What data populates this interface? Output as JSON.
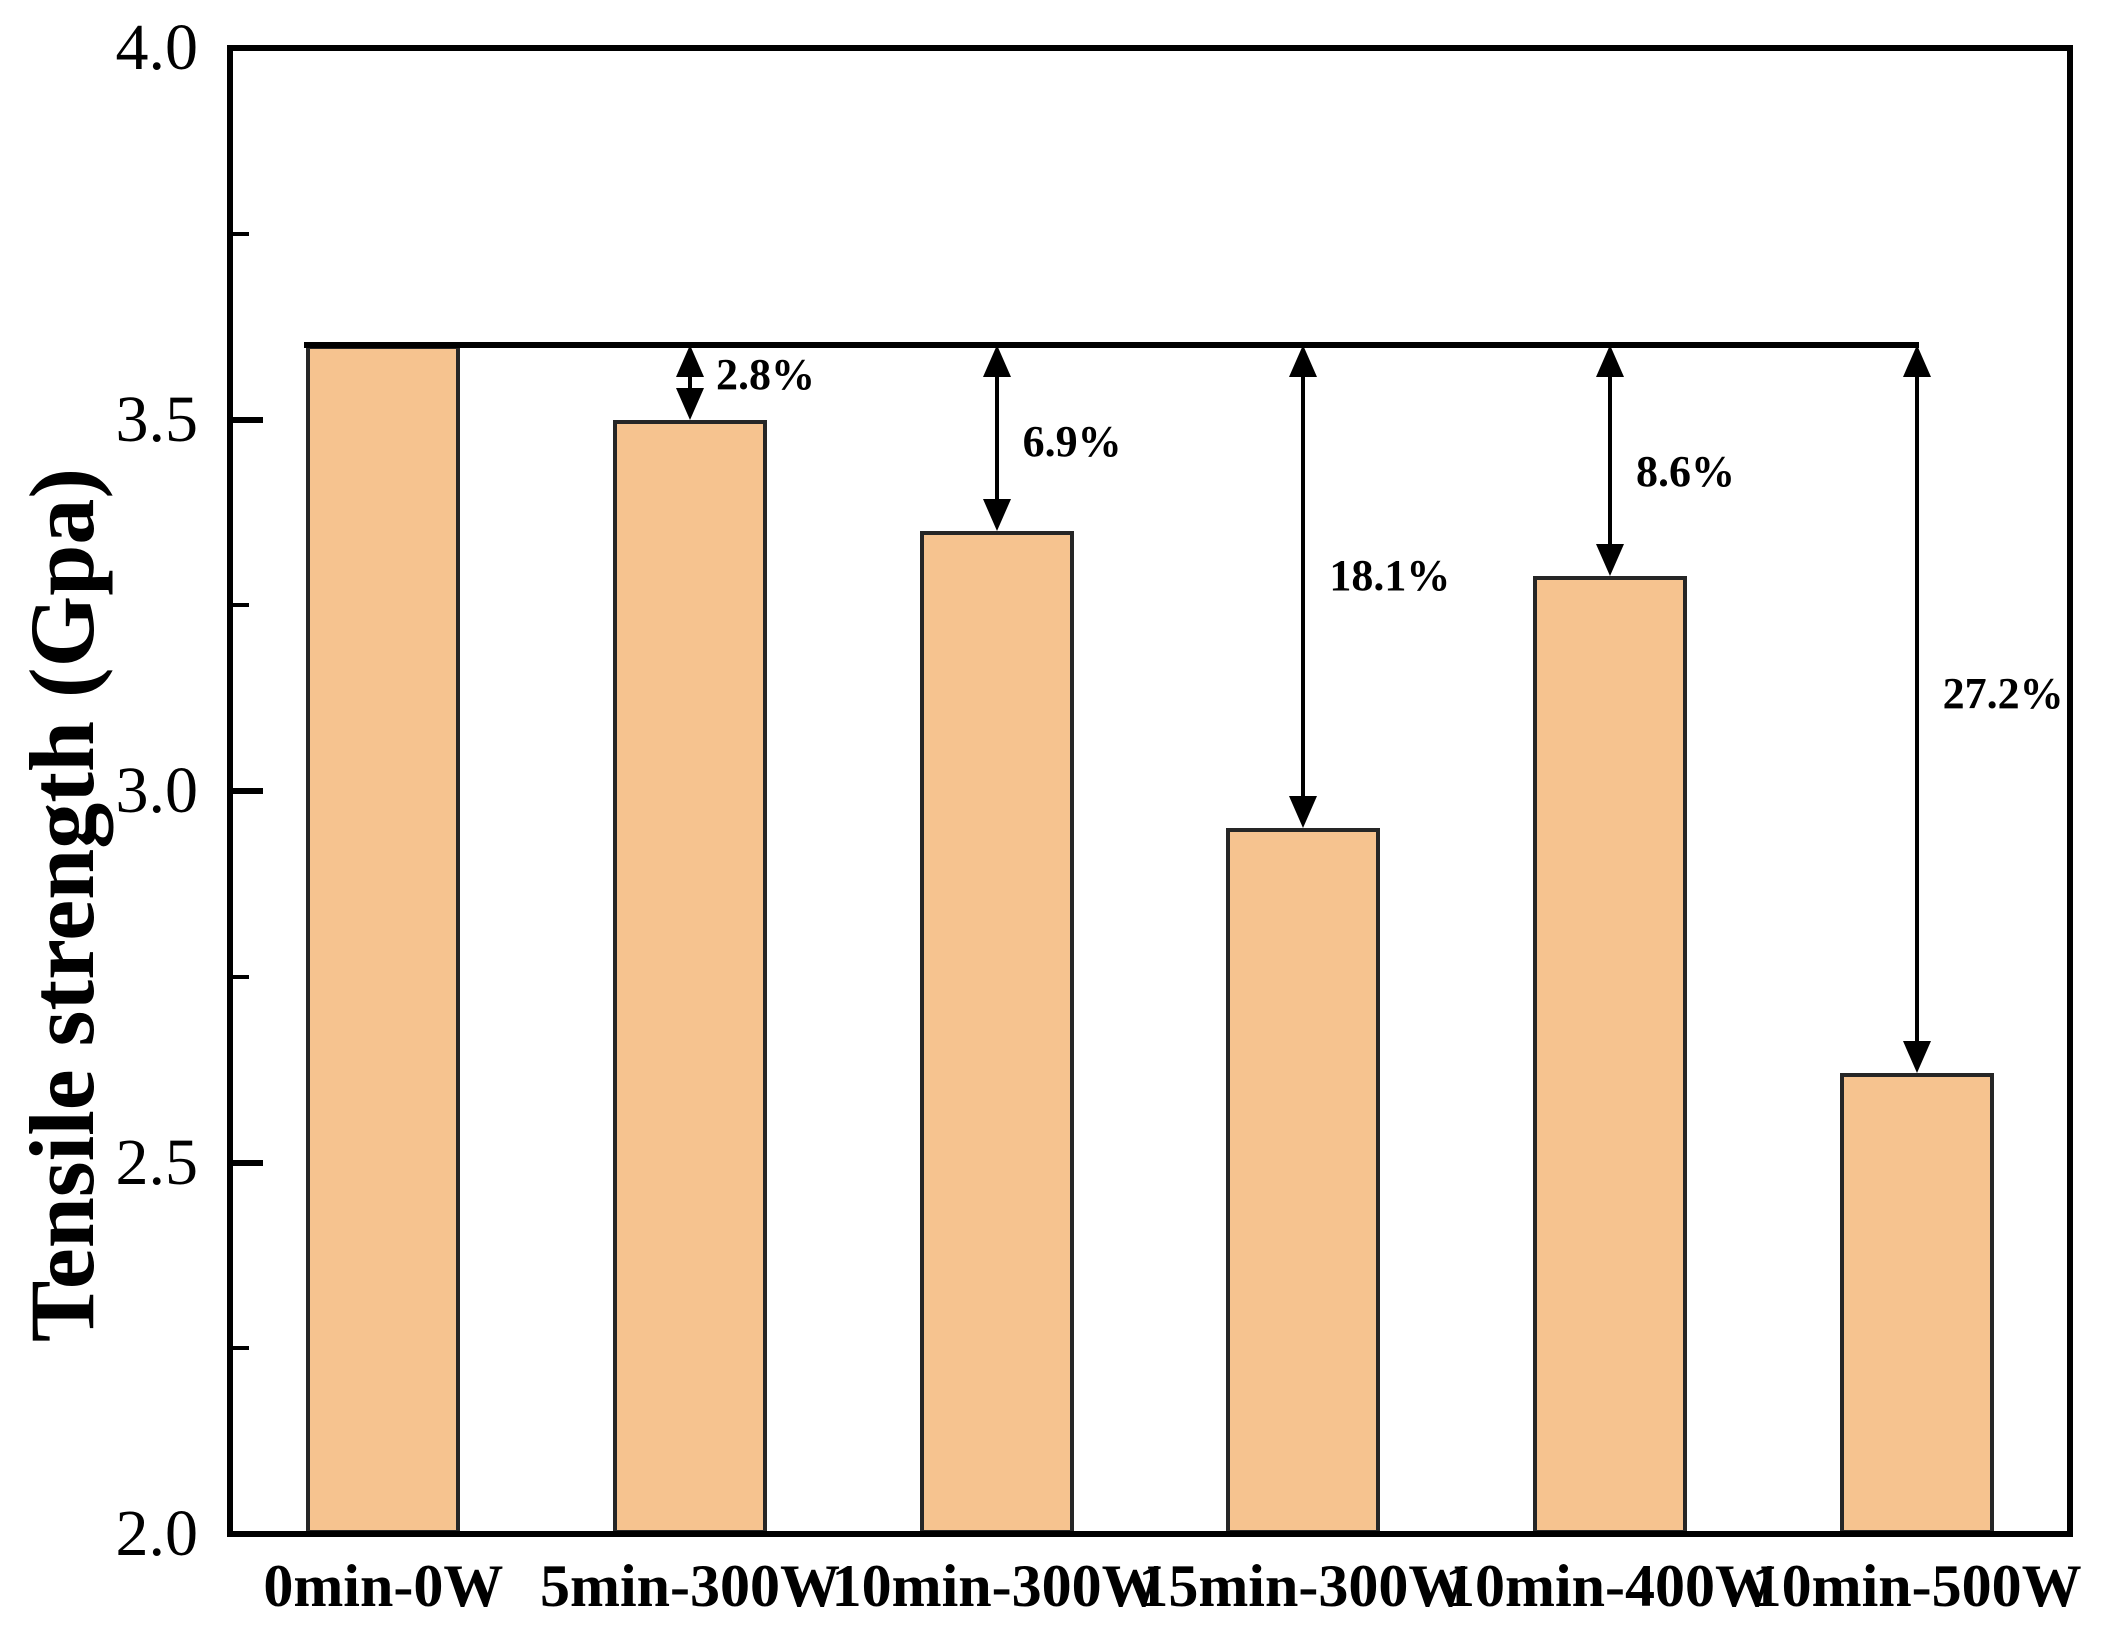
{
  "figure": {
    "background": "#ffffff"
  },
  "chart_data": {
    "type": "bar",
    "title": "",
    "xlabel": "",
    "ylabel": "Tensile strength (Gpa)",
    "ylim": [
      2.0,
      4.0
    ],
    "y_major_ticks": [
      2.0,
      2.5,
      3.0,
      3.5,
      4.0
    ],
    "y_tick_labels": [
      "2.0",
      "2.5",
      "3.0",
      "3.5",
      "4.0"
    ],
    "y_minor_ticks": [
      2.25,
      2.75,
      3.25,
      3.75
    ],
    "categories": [
      "0min-0W",
      "5min-300W",
      "10min-300W",
      "15min-300W",
      "10min-400W",
      "10min-500W"
    ],
    "values": [
      3.6,
      3.5,
      3.35,
      2.95,
      3.29,
      2.62
    ],
    "grid": false,
    "legend": null,
    "reference_line": {
      "value": 3.6,
      "start_category_index": 0,
      "end_category_index": 5
    },
    "annotations": [
      {
        "category_index": 1,
        "text": "2.8%",
        "label_y": 3.56
      },
      {
        "category_index": 2,
        "text": "6.9%",
        "label_y": 3.47
      },
      {
        "category_index": 3,
        "text": "18.1%",
        "label_y": 3.29
      },
      {
        "category_index": 4,
        "text": "8.6%",
        "label_y": 3.43
      },
      {
        "category_index": 5,
        "text": "27.2%",
        "label_y": 3.13
      }
    ],
    "colors": {
      "bar_fill": "#f6c38f",
      "bar_border": "#262626",
      "axis": "#000000",
      "text": "#000000"
    }
  }
}
